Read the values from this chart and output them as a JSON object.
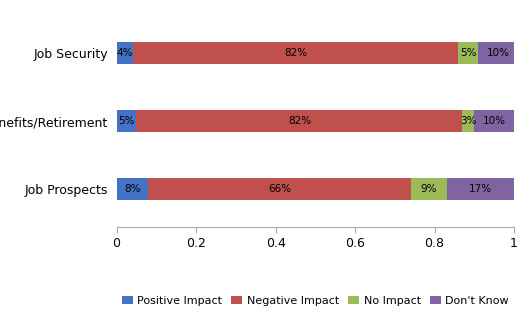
{
  "categories": [
    "Job Prospects",
    "Benefits/Retirement",
    "Job Security"
  ],
  "series": {
    "Positive Impact": [
      0.08,
      0.05,
      0.04
    ],
    "Negative Impact": [
      0.66,
      0.82,
      0.82
    ],
    "No Impact": [
      0.09,
      0.03,
      0.05
    ],
    "Don't Know": [
      0.17,
      0.1,
      0.1
    ]
  },
  "labels": {
    "Positive Impact": [
      "8%",
      "5%",
      "4%"
    ],
    "Negative Impact": [
      "66%",
      "82%",
      "82%"
    ],
    "No Impact": [
      "9%",
      "3%",
      "5%"
    ],
    "Don't Know": [
      "17%",
      "10%",
      "10%"
    ]
  },
  "colors": {
    "Positive Impact": "#4472C4",
    "Negative Impact": "#C0504D",
    "No Impact": "#9BBB59",
    "Don't Know": "#8064A2"
  },
  "xlim": [
    0,
    1.0
  ],
  "xticks": [
    0,
    0.2,
    0.4,
    0.6,
    0.8,
    1.0
  ],
  "xticklabels": [
    "0",
    "0.2",
    "0.4",
    "0.6",
    "0.8",
    "1"
  ],
  "background_color": "#FFFFFF",
  "bar_height": 0.32,
  "legend_order": [
    "Positive Impact",
    "Negative Impact",
    "No Impact",
    "Don't Know"
  ]
}
